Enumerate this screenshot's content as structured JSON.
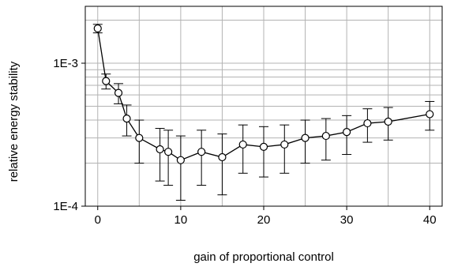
{
  "chart_data": {
    "type": "scatter",
    "title": "",
    "xlabel": "gain of proportional control",
    "ylabel": "relative energy stability",
    "xlim": [
      -1.5,
      41.5
    ],
    "ylim": [
      0.0001,
      0.0025
    ],
    "yscale": "log",
    "grid": true,
    "legend": "none",
    "x_ticks": [
      0,
      10,
      20,
      30,
      40
    ],
    "x_tick_labels": [
      "0",
      "10",
      "20",
      "30",
      "40"
    ],
    "y_ticks": [
      0.0001,
      0.001
    ],
    "y_tick_labels": [
      "1E-4",
      "1E-3"
    ],
    "series": [
      {
        "x": [
          0,
          1,
          2.5,
          3.5,
          5,
          7.5,
          8.5,
          10,
          12.5,
          15,
          17.5,
          20,
          22.5,
          25,
          27.5,
          30,
          32.5,
          35,
          40
        ],
        "y": [
          0.00175,
          0.00075,
          0.00062,
          0.00041,
          0.0003,
          0.00025,
          0.00024,
          0.00021,
          0.00024,
          0.00022,
          0.00027,
          0.00026,
          0.00027,
          0.0003,
          0.00031,
          0.00033,
          0.00038,
          0.00039,
          0.00044
        ],
        "err": [
          0.00012,
          9e-05,
          0.0001,
          0.0001,
          0.0001,
          0.0001,
          0.0001,
          0.0001,
          0.0001,
          0.0001,
          0.0001,
          0.0001,
          0.0001,
          0.0001,
          0.0001,
          0.0001,
          0.0001,
          0.0001,
          0.0001
        ]
      }
    ],
    "colors": {
      "line": "#000000",
      "marker_fill": "#ffffff",
      "grid": "#b3b3b3",
      "frame": "#000000"
    }
  }
}
